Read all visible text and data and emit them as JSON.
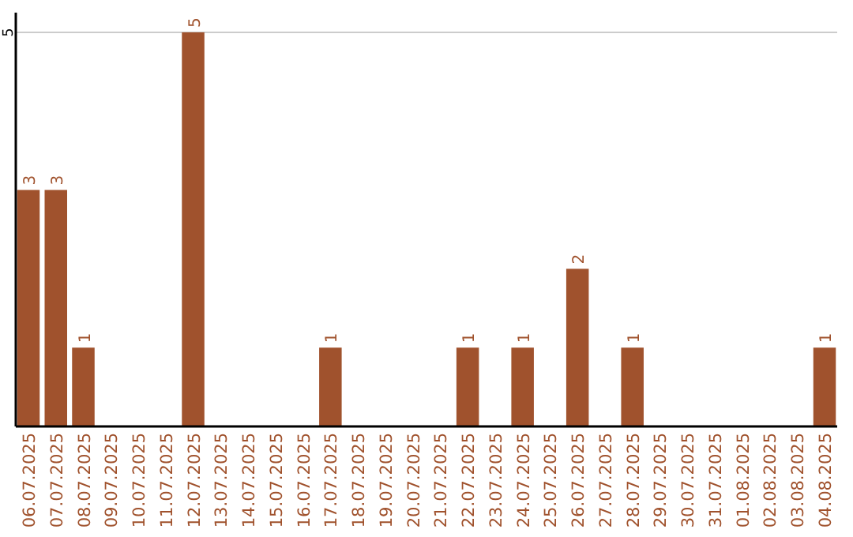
{
  "chart_data": {
    "type": "bar",
    "categories": [
      "06.07.2025",
      "07.07.2025",
      "08.07.2025",
      "09.07.2025",
      "10.07.2025",
      "11.07.2025",
      "12.07.2025",
      "13.07.2025",
      "14.07.2025",
      "15.07.2025",
      "16.07.2025",
      "17.07.2025",
      "18.07.2025",
      "19.07.2025",
      "20.07.2025",
      "21.07.2025",
      "22.07.2025",
      "23.07.2025",
      "24.07.2025",
      "25.07.2025",
      "26.07.2025",
      "27.07.2025",
      "28.07.2025",
      "29.07.2025",
      "30.07.2025",
      "31.07.2025",
      "01.08.2025",
      "02.08.2025",
      "03.08.2025",
      "04.08.2025"
    ],
    "values": [
      3,
      3,
      1,
      0,
      0,
      0,
      5,
      0,
      0,
      0,
      0,
      1,
      0,
      0,
      0,
      0,
      1,
      0,
      1,
      0,
      2,
      0,
      1,
      0,
      0,
      0,
      0,
      0,
      0,
      1
    ],
    "value_labels": [
      "3",
      "3",
      "1",
      null,
      null,
      null,
      "5",
      null,
      null,
      null,
      null,
      "1",
      null,
      null,
      null,
      null,
      "1",
      null,
      "1",
      null,
      "2",
      null,
      "1",
      null,
      null,
      null,
      null,
      null,
      null,
      "1"
    ],
    "color": "#a0522d",
    "ylim": [
      0,
      5.25
    ],
    "yticks": [
      5
    ],
    "grid": "y"
  }
}
